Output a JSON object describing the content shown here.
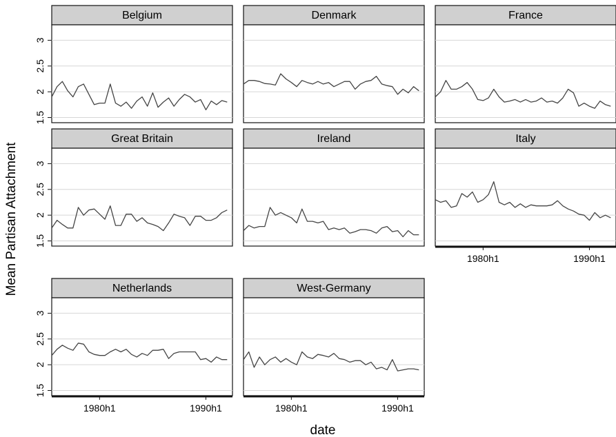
{
  "chart_data": {
    "type": "line",
    "xlabel": "date",
    "ylabel": "Mean Partisan Attachment",
    "x_unit": "half-year",
    "xlim": [
      "1975h2",
      "1992h2"
    ],
    "ylim": [
      1.4,
      3.3
    ],
    "y_ticks": [
      1.5,
      2,
      2.5,
      3
    ],
    "y_tick_labels": [
      "1.5",
      "2",
      "2.5",
      "3"
    ],
    "x_ticks": [
      "1980h1",
      "1990h1"
    ],
    "x_tick_labels": [
      "1980h1",
      "1990h1"
    ],
    "grid": true,
    "panels": [
      {
        "name": "Belgium",
        "x": [
          "1975h2",
          "1976h1",
          "1976h2",
          "1977h1",
          "1977h2",
          "1978h1",
          "1978h2",
          "1979h1",
          "1979h2",
          "1980h1",
          "1980h2",
          "1981h1",
          "1981h2",
          "1982h1",
          "1982h2",
          "1983h1",
          "1983h2",
          "1984h1",
          "1984h2",
          "1985h1",
          "1985h2",
          "1986h1",
          "1986h2",
          "1987h1",
          "1987h2",
          "1988h1",
          "1988h2",
          "1989h1",
          "1989h2",
          "1990h1",
          "1990h2",
          "1991h1",
          "1991h2",
          "1992h1"
        ],
        "values": [
          1.9,
          2.1,
          2.2,
          2.02,
          1.9,
          2.1,
          2.15,
          1.95,
          1.75,
          1.78,
          1.78,
          2.15,
          1.78,
          1.72,
          1.8,
          1.68,
          1.82,
          1.9,
          1.72,
          1.98,
          1.7,
          1.8,
          1.88,
          1.72,
          1.85,
          1.95,
          1.9,
          1.8,
          1.85,
          1.65,
          1.82,
          1.75,
          1.83,
          1.8
        ]
      },
      {
        "name": "Denmark",
        "x": [
          "1975h2",
          "1976h1",
          "1976h2",
          "1977h1",
          "1977h2",
          "1978h1",
          "1978h2",
          "1979h1",
          "1979h2",
          "1980h1",
          "1980h2",
          "1981h1",
          "1981h2",
          "1982h1",
          "1982h2",
          "1983h1",
          "1983h2",
          "1984h1",
          "1984h2",
          "1985h1",
          "1985h2",
          "1986h1",
          "1986h2",
          "1987h1",
          "1987h2",
          "1988h1",
          "1988h2",
          "1989h1",
          "1989h2",
          "1990h1",
          "1990h2",
          "1991h1",
          "1991h2",
          "1992h1"
        ],
        "values": [
          2.15,
          2.22,
          2.22,
          2.2,
          2.16,
          2.15,
          2.13,
          2.35,
          2.25,
          2.18,
          2.1,
          2.22,
          2.18,
          2.15,
          2.2,
          2.15,
          2.18,
          2.1,
          2.15,
          2.2,
          2.2,
          2.05,
          2.15,
          2.2,
          2.22,
          2.3,
          2.15,
          2.12,
          2.1,
          1.95,
          2.05,
          1.98,
          2.1,
          2.02
        ]
      },
      {
        "name": "France",
        "x": [
          "1975h2",
          "1976h1",
          "1976h2",
          "1977h1",
          "1977h2",
          "1978h1",
          "1978h2",
          "1979h1",
          "1979h2",
          "1980h1",
          "1980h2",
          "1981h1",
          "1981h2",
          "1982h1",
          "1982h2",
          "1983h1",
          "1983h2",
          "1984h1",
          "1984h2",
          "1985h1",
          "1985h2",
          "1986h1",
          "1986h2",
          "1987h1",
          "1987h2",
          "1988h1",
          "1988h2",
          "1989h1",
          "1989h2",
          "1990h1",
          "1990h2",
          "1991h1",
          "1991h2",
          "1992h1"
        ],
        "values": [
          1.9,
          2.0,
          2.22,
          2.05,
          2.05,
          2.1,
          2.18,
          2.05,
          1.85,
          1.83,
          1.88,
          2.05,
          1.9,
          1.8,
          1.82,
          1.85,
          1.8,
          1.85,
          1.8,
          1.82,
          1.88,
          1.8,
          1.82,
          1.78,
          1.88,
          2.05,
          1.98,
          1.72,
          1.78,
          1.72,
          1.68,
          1.82,
          1.75,
          1.72
        ]
      },
      {
        "name": "Great Britain",
        "x": [
          "1975h2",
          "1976h1",
          "1976h2",
          "1977h1",
          "1977h2",
          "1978h1",
          "1978h2",
          "1979h1",
          "1979h2",
          "1980h1",
          "1980h2",
          "1981h1",
          "1981h2",
          "1982h1",
          "1982h2",
          "1983h1",
          "1983h2",
          "1984h1",
          "1984h2",
          "1985h1",
          "1985h2",
          "1986h1",
          "1986h2",
          "1987h1",
          "1987h2",
          "1988h1",
          "1988h2",
          "1989h1",
          "1989h2",
          "1990h1",
          "1990h2",
          "1991h1",
          "1991h2",
          "1992h1"
        ],
        "values": [
          1.75,
          1.9,
          1.82,
          1.75,
          1.75,
          2.15,
          2.0,
          2.1,
          2.12,
          2.02,
          1.92,
          2.18,
          1.8,
          1.8,
          2.02,
          2.02,
          1.88,
          1.95,
          1.85,
          1.82,
          1.78,
          1.7,
          1.85,
          2.02,
          1.98,
          1.95,
          1.8,
          1.98,
          1.98,
          1.9,
          1.9,
          1.95,
          2.05,
          2.1
        ]
      },
      {
        "name": "Ireland",
        "x": [
          "1975h2",
          "1976h1",
          "1976h2",
          "1977h1",
          "1977h2",
          "1978h1",
          "1978h2",
          "1979h1",
          "1979h2",
          "1980h1",
          "1980h2",
          "1981h1",
          "1981h2",
          "1982h1",
          "1982h2",
          "1983h1",
          "1983h2",
          "1984h1",
          "1984h2",
          "1985h1",
          "1985h2",
          "1986h1",
          "1986h2",
          "1987h1",
          "1987h2",
          "1988h1",
          "1988h2",
          "1989h1",
          "1989h2",
          "1990h1",
          "1990h2",
          "1991h1",
          "1991h2",
          "1992h1"
        ],
        "values": [
          1.7,
          1.8,
          1.75,
          1.78,
          1.78,
          2.15,
          2.0,
          2.05,
          2.0,
          1.95,
          1.85,
          2.12,
          1.88,
          1.88,
          1.85,
          1.88,
          1.72,
          1.75,
          1.72,
          1.75,
          1.65,
          1.68,
          1.72,
          1.72,
          1.7,
          1.65,
          1.75,
          1.78,
          1.68,
          1.7,
          1.58,
          1.7,
          1.62,
          1.62
        ]
      },
      {
        "name": "Italy",
        "x": [
          "1975h2",
          "1976h1",
          "1976h2",
          "1977h1",
          "1977h2",
          "1978h1",
          "1978h2",
          "1979h1",
          "1979h2",
          "1980h1",
          "1980h2",
          "1981h1",
          "1981h2",
          "1982h1",
          "1982h2",
          "1983h1",
          "1983h2",
          "1984h1",
          "1984h2",
          "1985h1",
          "1985h2",
          "1986h1",
          "1986h2",
          "1987h1",
          "1987h2",
          "1988h1",
          "1988h2",
          "1989h1",
          "1989h2",
          "1990h1",
          "1990h2",
          "1991h1",
          "1991h2",
          "1992h1"
        ],
        "values": [
          2.3,
          2.25,
          2.28,
          2.15,
          2.18,
          2.42,
          2.35,
          2.45,
          2.25,
          2.3,
          2.4,
          2.65,
          2.25,
          2.2,
          2.25,
          2.15,
          2.22,
          2.15,
          2.2,
          2.18,
          2.18,
          2.18,
          2.2,
          2.28,
          2.18,
          2.12,
          2.08,
          2.02,
          2.0,
          1.9,
          2.05,
          1.95,
          2.0,
          1.95
        ]
      },
      {
        "name": "Netherlands",
        "x": [
          "1975h2",
          "1976h1",
          "1976h2",
          "1977h1",
          "1977h2",
          "1978h1",
          "1978h2",
          "1979h1",
          "1979h2",
          "1980h1",
          "1980h2",
          "1981h1",
          "1981h2",
          "1982h1",
          "1982h2",
          "1983h1",
          "1983h2",
          "1984h1",
          "1984h2",
          "1985h1",
          "1985h2",
          "1986h1",
          "1986h2",
          "1987h1",
          "1987h2",
          "1988h1",
          "1988h2",
          "1989h1",
          "1989h2",
          "1990h1",
          "1990h2",
          "1991h1",
          "1991h2",
          "1992h1"
        ],
        "values": [
          2.18,
          2.3,
          2.38,
          2.32,
          2.28,
          2.42,
          2.4,
          2.25,
          2.2,
          2.18,
          2.18,
          2.25,
          2.3,
          2.25,
          2.3,
          2.2,
          2.15,
          2.22,
          2.18,
          2.28,
          2.28,
          2.3,
          2.12,
          2.22,
          2.25,
          2.25,
          2.25,
          2.25,
          2.1,
          2.12,
          2.05,
          2.15,
          2.1,
          2.1
        ]
      },
      {
        "name": "West-Germany",
        "x": [
          "1975h2",
          "1976h1",
          "1976h2",
          "1977h1",
          "1977h2",
          "1978h1",
          "1978h2",
          "1979h1",
          "1979h2",
          "1980h1",
          "1980h2",
          "1981h1",
          "1981h2",
          "1982h1",
          "1982h2",
          "1983h1",
          "1983h2",
          "1984h1",
          "1984h2",
          "1985h1",
          "1985h2",
          "1986h1",
          "1986h2",
          "1987h1",
          "1987h2",
          "1988h1",
          "1988h2",
          "1989h1",
          "1989h2",
          "1990h1",
          "1990h2",
          "1991h1",
          "1991h2",
          "1992h1"
        ],
        "values": [
          2.1,
          2.25,
          1.95,
          2.15,
          2.0,
          2.1,
          2.15,
          2.05,
          2.12,
          2.05,
          2.0,
          2.25,
          2.15,
          2.12,
          2.2,
          2.18,
          2.15,
          2.22,
          2.12,
          2.1,
          2.05,
          2.08,
          2.08,
          2.0,
          2.05,
          1.92,
          1.95,
          1.9,
          2.1,
          1.88,
          1.9,
          1.92,
          1.92,
          1.9
        ]
      }
    ]
  }
}
